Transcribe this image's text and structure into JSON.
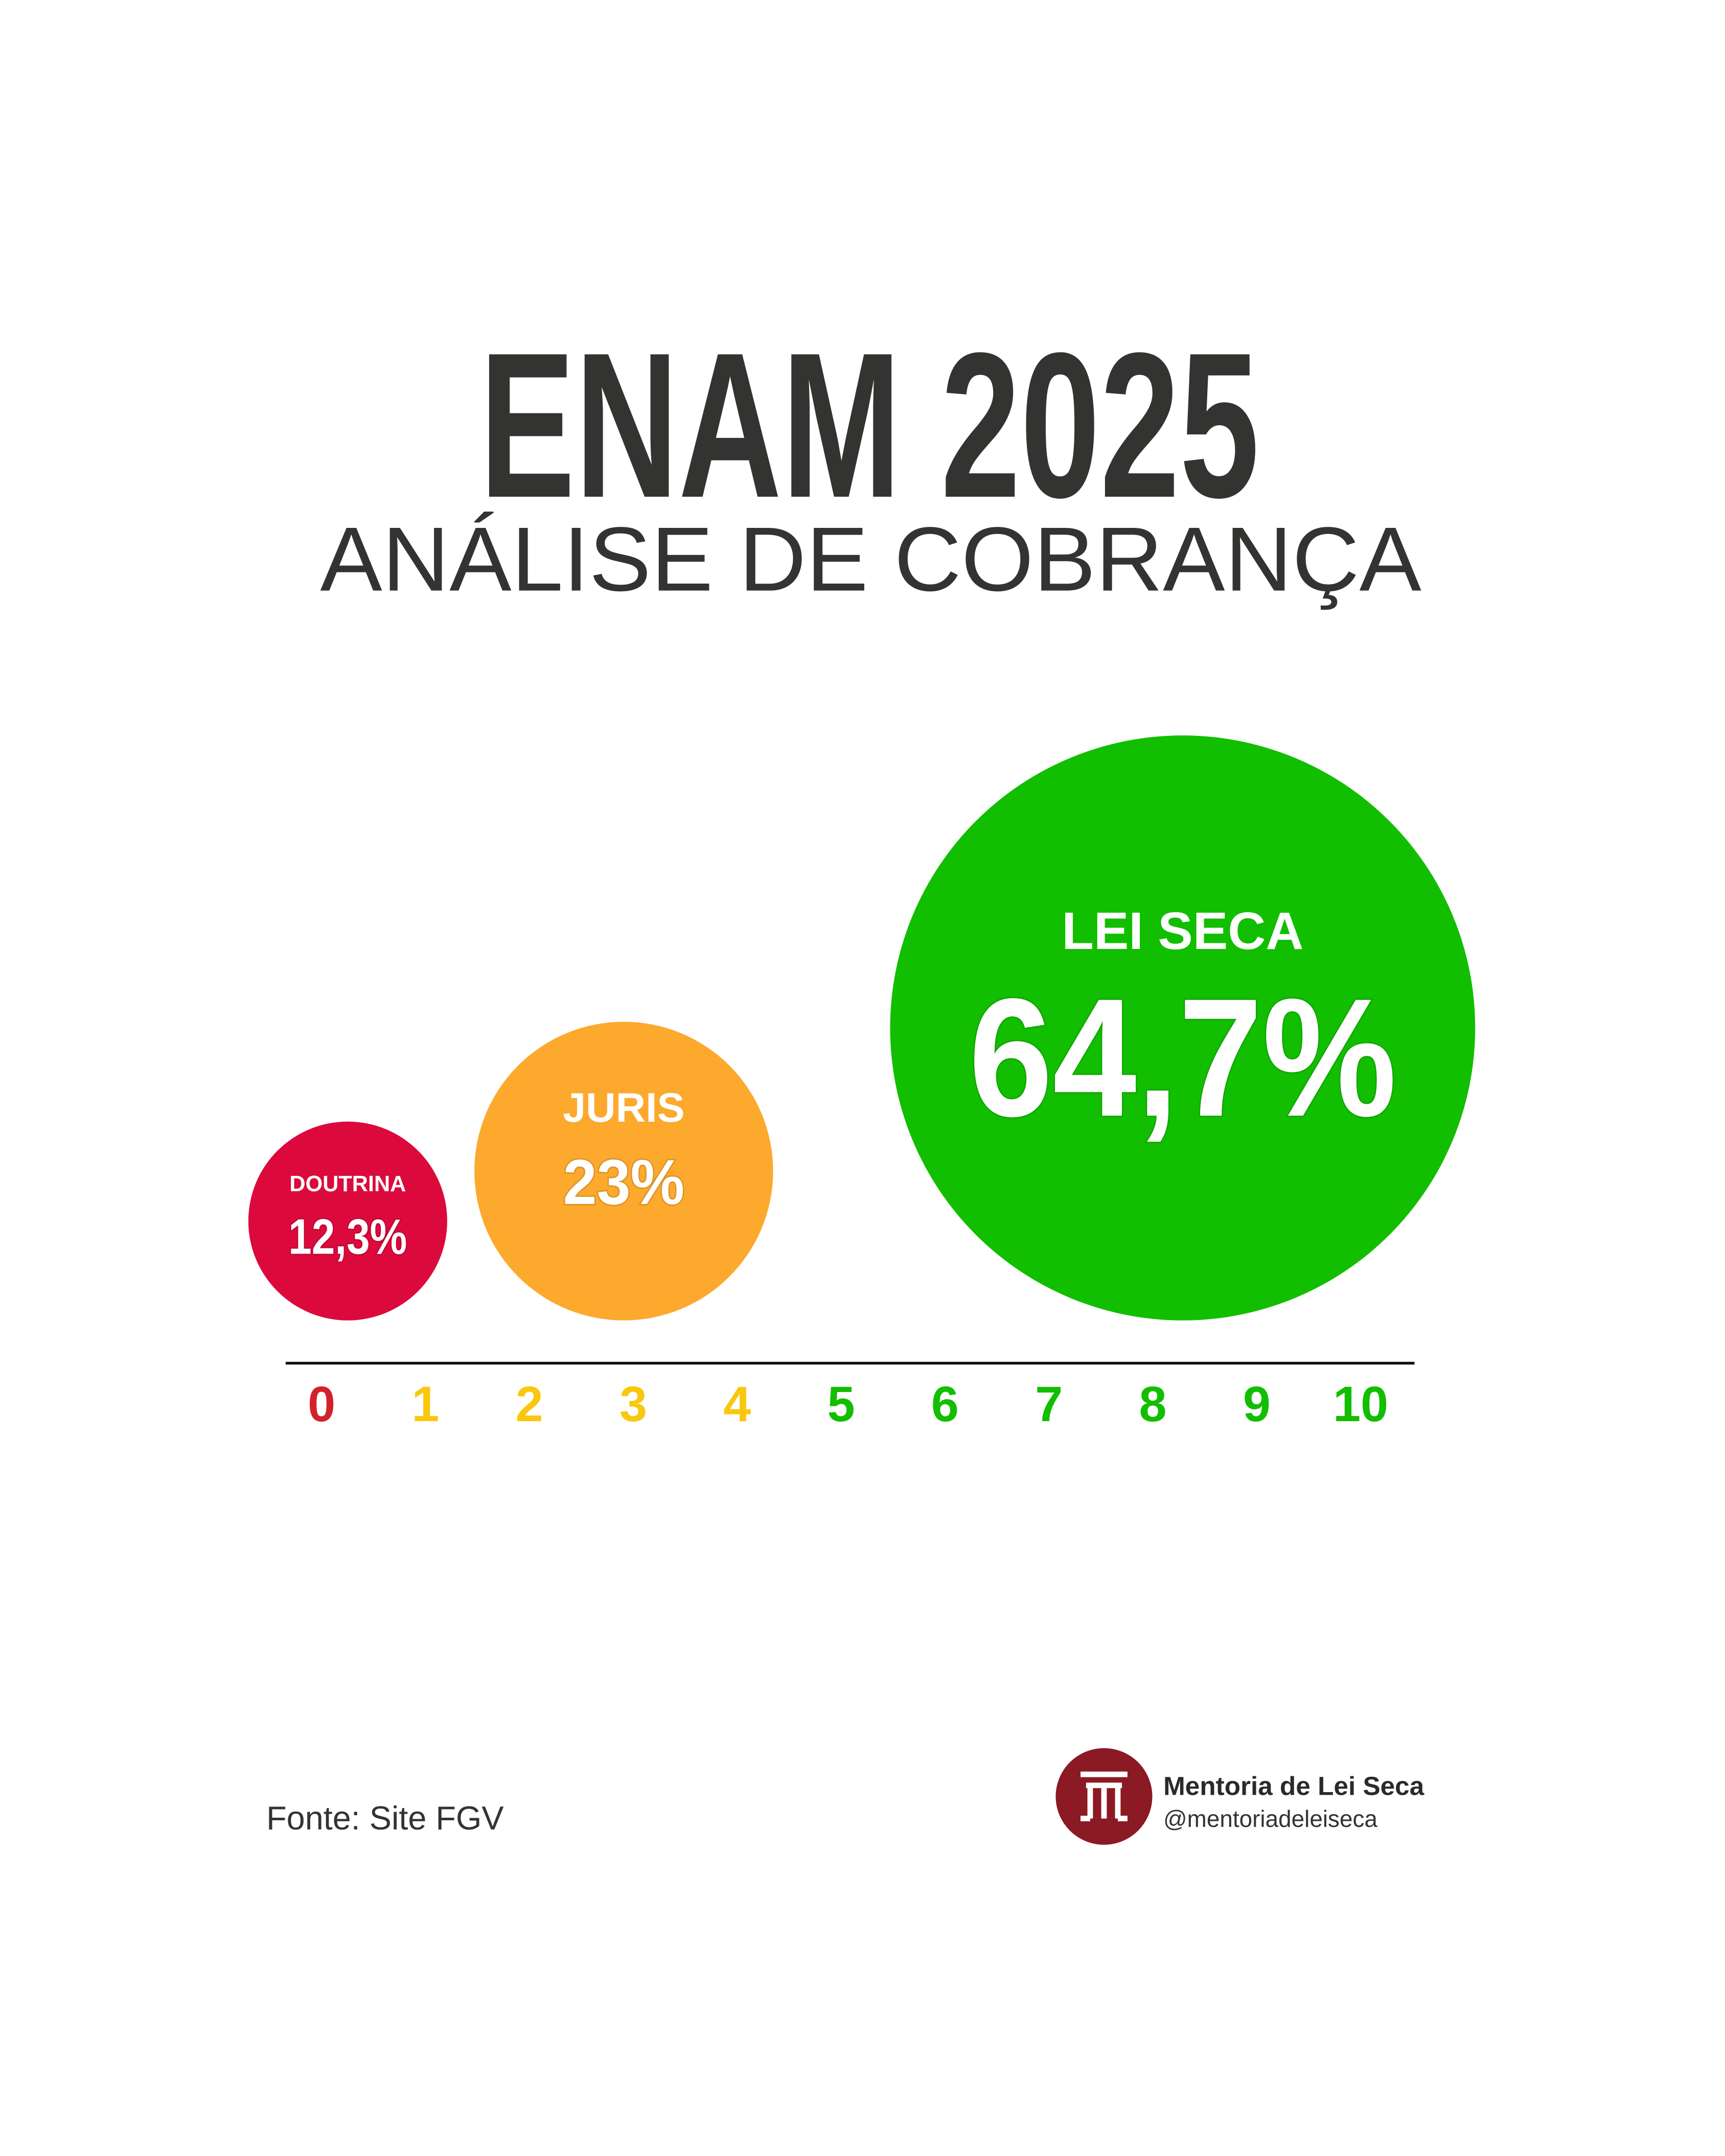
{
  "chart_data": {
    "type": "bubble",
    "title": "ENAM 2025",
    "subtitle": "ANÁLISE DE COBRANÇA",
    "categories": [
      "DOUTRINA",
      "JURIS",
      "LEI SECA"
    ],
    "values": [
      12.3,
      23,
      64.7
    ],
    "value_labels": [
      "12,3%",
      "23%",
      "64,7%"
    ],
    "colors": [
      "#dc0a3c",
      "#fca92d",
      "#12be00"
    ],
    "xlim": [
      0,
      10
    ],
    "xticks": [
      0,
      1,
      2,
      3,
      4,
      5,
      6,
      7,
      8,
      9,
      10
    ],
    "xtick_colors": [
      "#d3202a",
      "#f9c80e",
      "#f9c80e",
      "#f9c80e",
      "#f9c80e",
      "#12be00",
      "#12be00",
      "#12be00",
      "#12be00",
      "#12be00",
      "#12be00"
    ]
  },
  "source": "Fonte: Site FGV",
  "brand": {
    "name": "Mentoria de Lei Seca",
    "handle": "@mentoriadeleiseca"
  }
}
